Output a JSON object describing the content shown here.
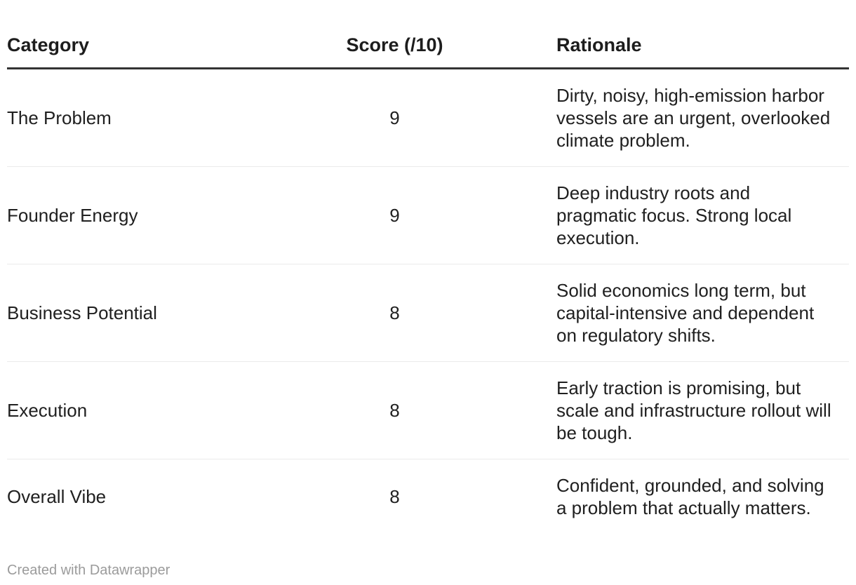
{
  "chart_data": {
    "type": "table",
    "columns": [
      "Category",
      "Score (/10)",
      "Rationale"
    ],
    "rows": [
      [
        "The Problem",
        9,
        "Dirty, noisy, high-emission harbor vessels are an urgent, overlooked climate problem."
      ],
      [
        "Founder Energy",
        9,
        "Deep industry roots and pragmatic focus. Strong local execution."
      ],
      [
        "Business Potential",
        8,
        "Solid economics long term, but capital-intensive and dependent on regulatory shifts."
      ],
      [
        "Execution",
        8,
        "Early traction is promising, but scale and infrastructure rollout will be tough."
      ],
      [
        "Overall Vibe",
        8,
        "Confident, grounded, and solving a problem that actually matters."
      ]
    ],
    "title": "",
    "layout_hints": {
      "score_column_align": "center",
      "header_rule": true,
      "row_dividers": true
    }
  },
  "footer": {
    "credit": "Created with Datawrapper"
  },
  "colors": {
    "background": "#ffffff",
    "text": "#202020",
    "header_text": "#1d1d1d",
    "header_rule": "#333333",
    "row_divider": "#ebebeb",
    "credit_text": "#9b9b9b"
  }
}
